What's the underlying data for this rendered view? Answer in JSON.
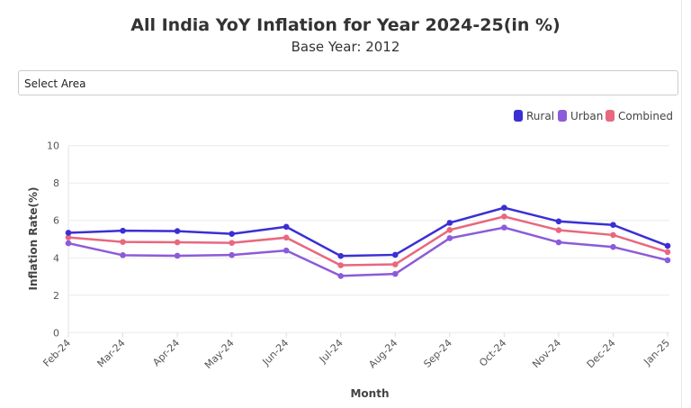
{
  "title": "All India YoY Inflation for Year 2024-25(in %)",
  "subtitle": "Base Year: 2012",
  "select_area": {
    "placeholder": "Select Area"
  },
  "chart_data": {
    "type": "line",
    "title": "All India YoY Inflation for Year 2024-25(in %)",
    "subtitle": "Base Year: 2012",
    "xlabel": "Month",
    "ylabel": "Inflation Rate(%)",
    "ylim": [
      0,
      10
    ],
    "yticks": [
      "0",
      "2",
      "4",
      "6",
      "8",
      "10"
    ],
    "grid": true,
    "legend_position": "top-right",
    "categories": [
      "Feb-24",
      "Mar-24",
      "Apr-24",
      "May-24",
      "Jun-24",
      "Jul-24",
      "Aug-24",
      "Sep-24",
      "Oct-24",
      "Nov-24",
      "Dec-24",
      "Jan-25"
    ],
    "series": [
      {
        "name": "Rural",
        "color": "#3a2fd4",
        "values": [
          5.34,
          5.45,
          5.43,
          5.28,
          5.66,
          4.1,
          4.16,
          5.87,
          6.68,
          5.95,
          5.76,
          4.64
        ]
      },
      {
        "name": "Urban",
        "color": "#8c5bd9",
        "values": [
          4.78,
          4.14,
          4.11,
          4.15,
          4.39,
          3.03,
          3.14,
          5.05,
          5.62,
          4.83,
          4.58,
          3.87
        ]
      },
      {
        "name": "Combined",
        "color": "#e8687e",
        "values": [
          5.09,
          4.85,
          4.83,
          4.8,
          5.08,
          3.6,
          3.65,
          5.49,
          6.21,
          5.48,
          5.22,
          4.31
        ]
      }
    ]
  }
}
